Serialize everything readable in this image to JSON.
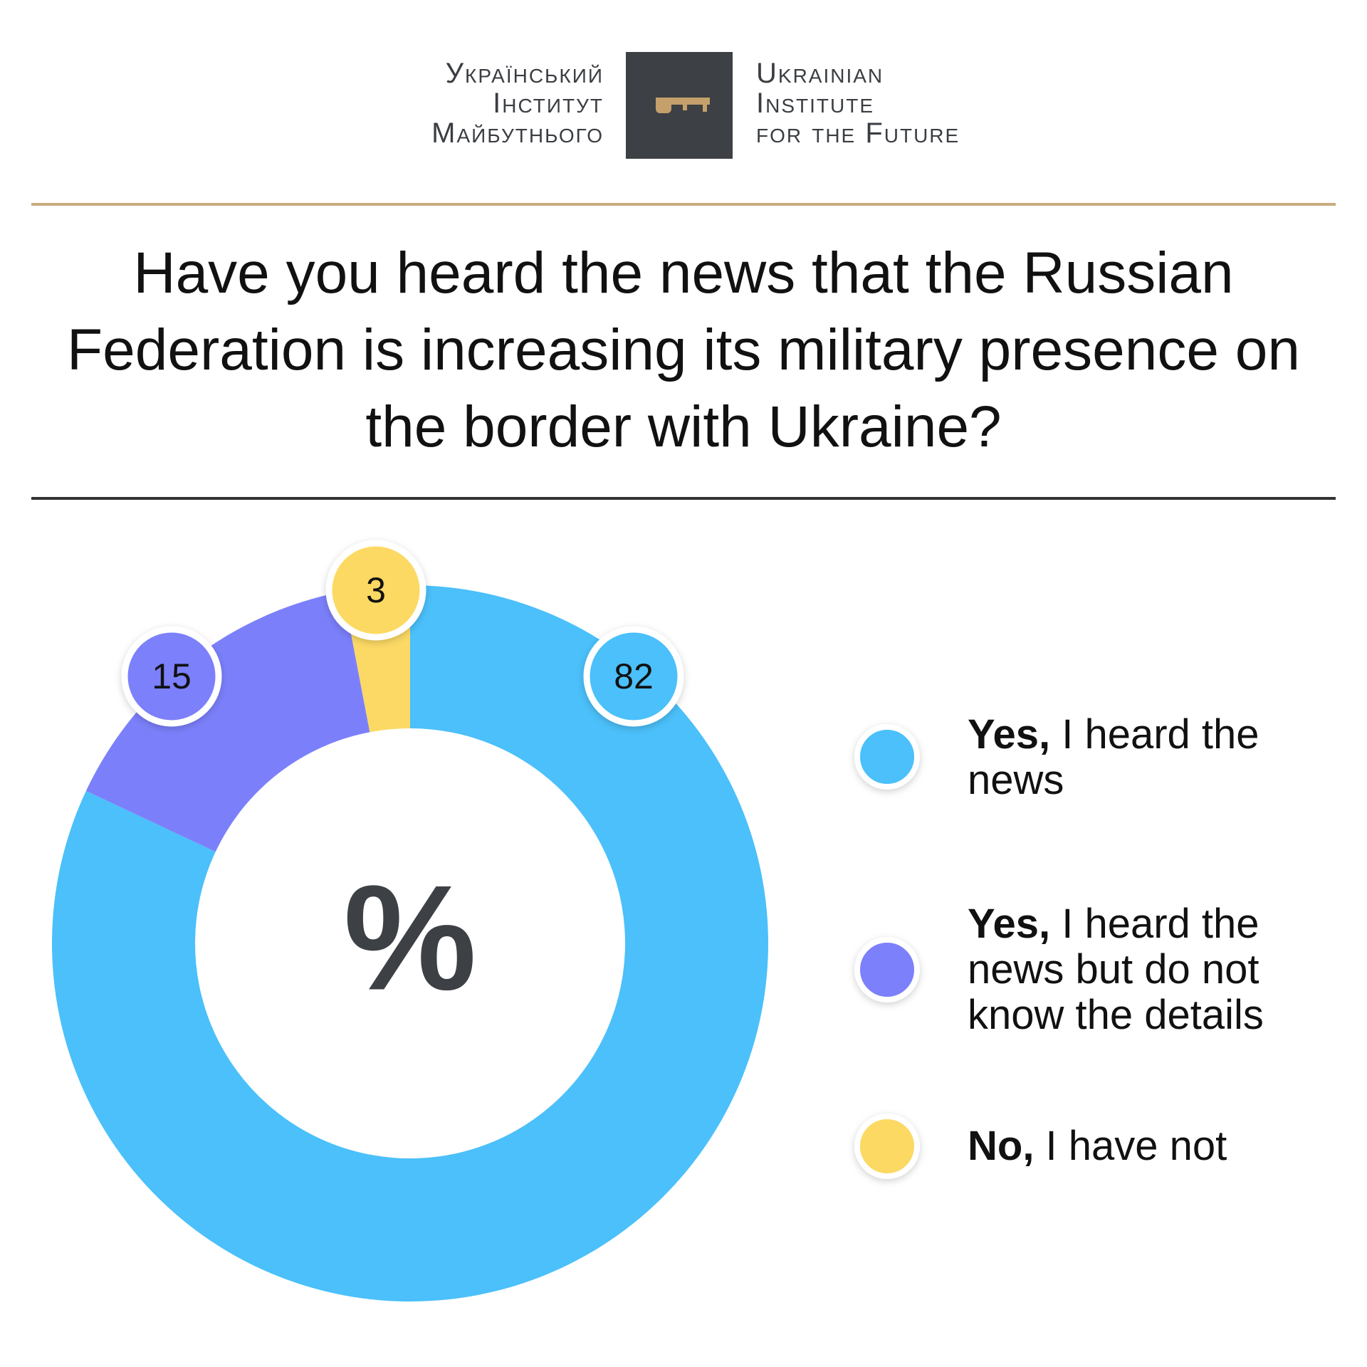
{
  "header": {
    "logo_ua": [
      "Український",
      "Інститут",
      "Майбутнього"
    ],
    "logo_en": [
      "Ukrainian",
      "Institute",
      "for the Future"
    ]
  },
  "chart_data": {
    "type": "donut",
    "title": "Have you heard the news that the Russian Federation is increasing its military presence on the border with Ukraine?",
    "center_label": "%",
    "categories": [
      "Yes, I heard the news",
      "Yes, I heard the news but do not know the details",
      "No, I have not"
    ],
    "values": [
      82,
      15,
      3
    ],
    "colors": [
      "#4bc0fa",
      "#7b80fa",
      "#fcd964"
    ]
  }
}
